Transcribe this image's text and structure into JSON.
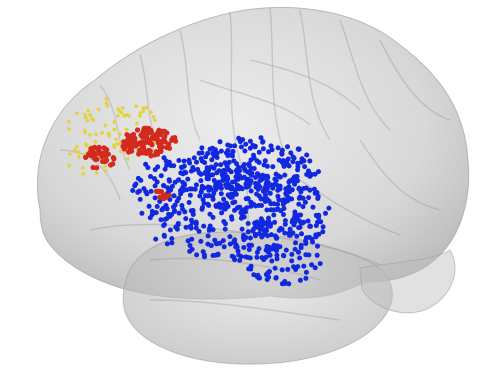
{
  "scene": {
    "subject": "brain",
    "view": "left-lateral",
    "background_color": "#ffffff",
    "surface_color": "#c8c8c8",
    "surface_edge_color": "#9a9a9a"
  },
  "electrode_groups": [
    {
      "name": "blue-group",
      "color": "#1128e0"
    },
    {
      "name": "red-group",
      "color": "#d42a1e"
    },
    {
      "name": "yellow-group",
      "color": "#e3d23a"
    }
  ]
}
